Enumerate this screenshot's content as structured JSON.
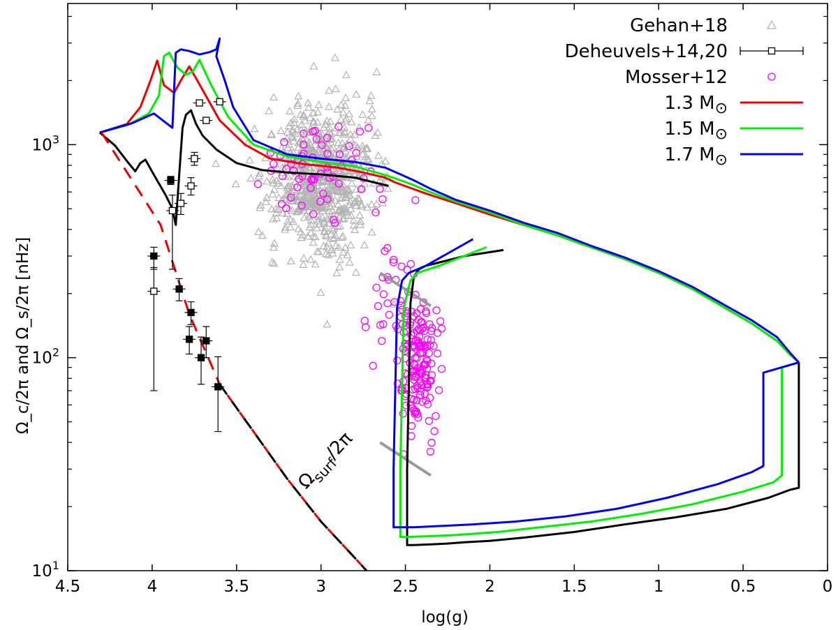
{
  "chart_data": {
    "type": "line",
    "xlabel": "log(g)",
    "ylabel": "Ω_c/2π  and  Ω_s/2π [nHz]",
    "xlim": [
      4.5,
      0
    ],
    "ylim": [
      10,
      4600
    ],
    "yscale": "log",
    "x_ticks": [
      "4.5",
      "4",
      "3.5",
      "3",
      "2.5",
      "2",
      "1.5",
      "1",
      "0.5",
      "0"
    ],
    "x_tick_values": [
      4.5,
      4,
      3.5,
      3,
      2.5,
      2,
      1.5,
      1,
      0.5,
      0
    ],
    "y_ticks": [
      10,
      100,
      1000
    ],
    "legend_position": "top-right",
    "legend": [
      {
        "label": "Gehan+18",
        "kind": "triangle",
        "color": "#b3b3b3"
      },
      {
        "label": "Deheuvels+14,20",
        "kind": "errorbar-square",
        "color": "#000000"
      },
      {
        "label": "Mosser+12",
        "kind": "circle",
        "color": "#ff00ff"
      },
      {
        "label": "1.3 M",
        "suffix": "⊙",
        "kind": "line",
        "color": "#ee0000"
      },
      {
        "label": "1.5 M",
        "suffix": "⊙",
        "kind": "line",
        "color": "#00ee00"
      },
      {
        "label": "1.7 M",
        "suffix": "⊙",
        "kind": "line",
        "color": "#0000ee"
      }
    ],
    "annotation": {
      "text": "Ω",
      "sub": "surf",
      "tail": "/2π",
      "x": 2.96,
      "y": 30
    },
    "series": [
      {
        "name": "1.3 Msun core",
        "color": "#ee0000",
        "width": 3,
        "x": [
          4.31,
          4.15,
          4.07,
          4.01,
          3.97,
          3.93,
          3.87,
          3.83,
          3.78,
          3.7,
          3.6,
          3.45,
          3.3,
          3.1,
          2.9,
          2.75,
          2.62,
          2.56,
          2.48,
          2.38,
          2.2,
          2.0,
          1.8,
          1.6,
          1.4,
          1.2,
          1.0,
          0.8,
          0.6,
          0.45,
          0.3,
          0.22,
          0.17
        ],
        "y": [
          1140,
          1250,
          1500,
          2000,
          2480,
          1900,
          1750,
          2000,
          2330,
          1800,
          1300,
          1000,
          860,
          810,
          780,
          740,
          700,
          665,
          630,
          590,
          530,
          470,
          420,
          375,
          330,
          290,
          250,
          210,
          170,
          145,
          120,
          103,
          95
        ]
      },
      {
        "name": "1.5 Msun core",
        "color": "#00ee00",
        "width": 3,
        "x": [
          4.31,
          4.14,
          4.02,
          3.96,
          3.93,
          3.9,
          3.85,
          3.8,
          3.76,
          3.72,
          3.65,
          3.55,
          3.4,
          3.2,
          3.0,
          2.8,
          2.62,
          2.54,
          2.46,
          2.38,
          2.2,
          2.0,
          1.8,
          1.6,
          1.4,
          1.2,
          1.0,
          0.8,
          0.6,
          0.45,
          0.3,
          0.22,
          0.17
        ],
        "y": [
          1140,
          1240,
          1400,
          1700,
          2600,
          2700,
          2300,
          2130,
          2200,
          2500,
          1900,
          1350,
          1000,
          880,
          830,
          790,
          720,
          685,
          650,
          610,
          540,
          480,
          420,
          375,
          330,
          290,
          250,
          210,
          170,
          145,
          120,
          103,
          95
        ]
      },
      {
        "name": "1.7 Msun core",
        "color": "#0000ee",
        "width": 3,
        "x": [
          4.31,
          4.12,
          3.99,
          3.88,
          3.86,
          3.83,
          3.78,
          3.72,
          3.66,
          3.62,
          3.6,
          3.62,
          3.57,
          3.52,
          3.4,
          3.2,
          3.0,
          2.8,
          2.62,
          2.52,
          2.45,
          2.35,
          2.2,
          2.0,
          1.8,
          1.6,
          1.4,
          1.2,
          1.0,
          0.8,
          0.6,
          0.45,
          0.3,
          0.22,
          0.17
        ],
        "y": [
          1140,
          1260,
          1400,
          1200,
          2700,
          2800,
          2750,
          2650,
          2720,
          2800,
          3150,
          2600,
          2000,
          1500,
          1050,
          900,
          860,
          830,
          780,
          720,
          680,
          620,
          550,
          490,
          430,
          385,
          335,
          295,
          255,
          215,
          175,
          150,
          125,
          105,
          95
        ]
      },
      {
        "name": "1.3 Msun red",
        "color": "#ee0000",
        "width": 2.5,
        "x": [
          0.17,
          0.17,
          0.17,
          0.17,
          0.17,
          0.22,
          0.35,
          0.6,
          0.9,
          1.2,
          1.5,
          1.8,
          2.0,
          2.15,
          2.26,
          2.35,
          2.45,
          2.49,
          2.49,
          2.47,
          2.45,
          2.42,
          2.38,
          2.3,
          2.15,
          1.92
        ],
        "y": [
          95,
          60,
          35,
          25,
          24.5,
          24,
          22,
          19.5,
          17.8,
          16.5,
          15.2,
          14.3,
          13.8,
          13.6,
          13.4,
          13.3,
          13.2,
          13.2,
          30,
          180,
          240,
          260,
          270,
          280,
          300,
          320
        ]
      },
      {
        "name": "1.3 Msun black",
        "color": "#000000",
        "width": 3,
        "x": [
          0.17,
          0.17,
          0.17,
          0.17,
          0.17,
          0.22,
          0.35,
          0.6,
          0.9,
          1.2,
          1.5,
          1.8,
          2.0,
          2.15,
          2.26,
          2.35,
          2.45,
          2.49,
          2.49,
          2.47,
          2.45,
          2.42,
          2.38,
          2.3,
          2.15,
          1.92
        ],
        "y": [
          95,
          60,
          35,
          25,
          24.5,
          24,
          22,
          19.5,
          17.8,
          16.5,
          15.2,
          14.3,
          13.8,
          13.6,
          13.4,
          13.3,
          13.2,
          13.2,
          30,
          180,
          240,
          260,
          270,
          280,
          300,
          320
        ]
      },
      {
        "name": "1.5 Msun branch",
        "color": "#00ee00",
        "width": 3,
        "x": [
          0.17,
          0.27,
          0.27,
          0.27,
          0.27,
          0.32,
          0.5,
          0.8,
          1.1,
          1.4,
          1.7,
          1.95,
          2.2,
          2.38,
          2.5,
          2.53,
          2.53,
          2.51,
          2.47,
          2.43,
          2.3,
          2.02
        ],
        "y": [
          95,
          90,
          60,
          35,
          28,
          26,
          23.5,
          20.5,
          18.5,
          17.0,
          16.0,
          15.2,
          14.7,
          14.5,
          14.4,
          14.4,
          30,
          170,
          230,
          250,
          270,
          330
        ]
      },
      {
        "name": "1.7 Msun branch",
        "color": "#0000ee",
        "width": 3,
        "x": [
          0.17,
          0.38,
          0.38,
          0.38,
          0.38,
          0.45,
          0.65,
          0.95,
          1.25,
          1.55,
          1.85,
          2.1,
          2.3,
          2.45,
          2.55,
          2.57,
          2.57,
          2.55,
          2.52,
          2.48,
          2.38,
          2.1
        ],
        "y": [
          95,
          85,
          60,
          40,
          31,
          29,
          25.5,
          22,
          19.5,
          18,
          17,
          16.5,
          16.2,
          16.0,
          16.0,
          16.0,
          30,
          170,
          230,
          250,
          270,
          360
        ]
      },
      {
        "name": "1.3 Msun black envelope",
        "color": "#000000",
        "width": 3,
        "x": [
          4.31,
          4.22,
          4.14,
          4.1,
          4.07,
          4.04,
          3.98,
          3.92,
          3.88,
          3.86,
          3.84,
          3.82,
          3.8,
          3.77,
          3.74,
          3.7,
          3.62,
          3.5,
          3.35,
          3.2,
          3.0,
          2.8,
          2.6
        ],
        "y": [
          1140,
          990,
          820,
          750,
          820,
          850,
          700,
          580,
          500,
          420,
          720,
          1200,
          1380,
          1450,
          1250,
          1100,
          950,
          820,
          760,
          740,
          725,
          700,
          640
        ]
      },
      {
        "name": "Ωsurf/2π",
        "color": "#ee0000",
        "width": 3,
        "dashed": true,
        "x": [
          4.3,
          3.95,
          3.78,
          3.6,
          3.4,
          3.2,
          3.0,
          2.8,
          2.73
        ],
        "y": [
          1140,
          420,
          160,
          75,
          45,
          27,
          17,
          11.5,
          10
        ]
      },
      {
        "name": "Ωsurf black",
        "color": "#000000",
        "width": 3,
        "dashed": true,
        "x": [
          3.6,
          3.4,
          3.2,
          3.0,
          2.8,
          2.73
        ],
        "y": [
          75,
          45,
          27,
          17,
          11.5,
          10
        ]
      }
    ],
    "deheuvels_points": [
      {
        "x": 3.75,
        "y": 860,
        "yerr": [
          60,
          60
        ],
        "filled": false
      },
      {
        "x": 3.72,
        "y": 1570,
        "yerr": [
          40,
          40
        ],
        "filled": false
      },
      {
        "x": 3.68,
        "y": 1300,
        "yerr": [
          40,
          40
        ],
        "filled": false
      },
      {
        "x": 3.6,
        "y": 1590,
        "yerr": [
          30,
          30
        ],
        "filled": false
      },
      {
        "x": 3.89,
        "y": 680,
        "yerr": [
          30,
          30
        ],
        "filled": true
      },
      {
        "x": 3.83,
        "y": 530,
        "yerr": [
          60,
          60
        ],
        "filled": false
      },
      {
        "x": 3.88,
        "y": 490,
        "yerr": [
          230,
          90
        ],
        "filled": false
      },
      {
        "x": 3.77,
        "y": 640,
        "yerr": [
          60,
          60
        ],
        "filled": false
      },
      {
        "x": 3.99,
        "y": 300,
        "yerr": [
          40,
          30
        ],
        "filled": true
      },
      {
        "x": 3.99,
        "y": 205,
        "yerr": [
          135,
          60
        ],
        "filled": false
      },
      {
        "x": 3.84,
        "y": 210,
        "yerr": [
          25,
          25
        ],
        "filled": true
      },
      {
        "x": 3.77,
        "y": 163,
        "yerr": [
          20,
          20
        ],
        "filled": true
      },
      {
        "x": 3.78,
        "y": 122,
        "yerr": [
          18,
          18
        ],
        "filled": true
      },
      {
        "x": 3.68,
        "y": 120,
        "yerr": [
          20,
          20
        ],
        "filled": true
      },
      {
        "x": 3.71,
        "y": 100,
        "yerr": [
          25,
          25
        ],
        "filled": true
      },
      {
        "x": 3.61,
        "y": 73,
        "yerr": [
          28,
          28
        ],
        "filled": true
      }
    ]
  }
}
